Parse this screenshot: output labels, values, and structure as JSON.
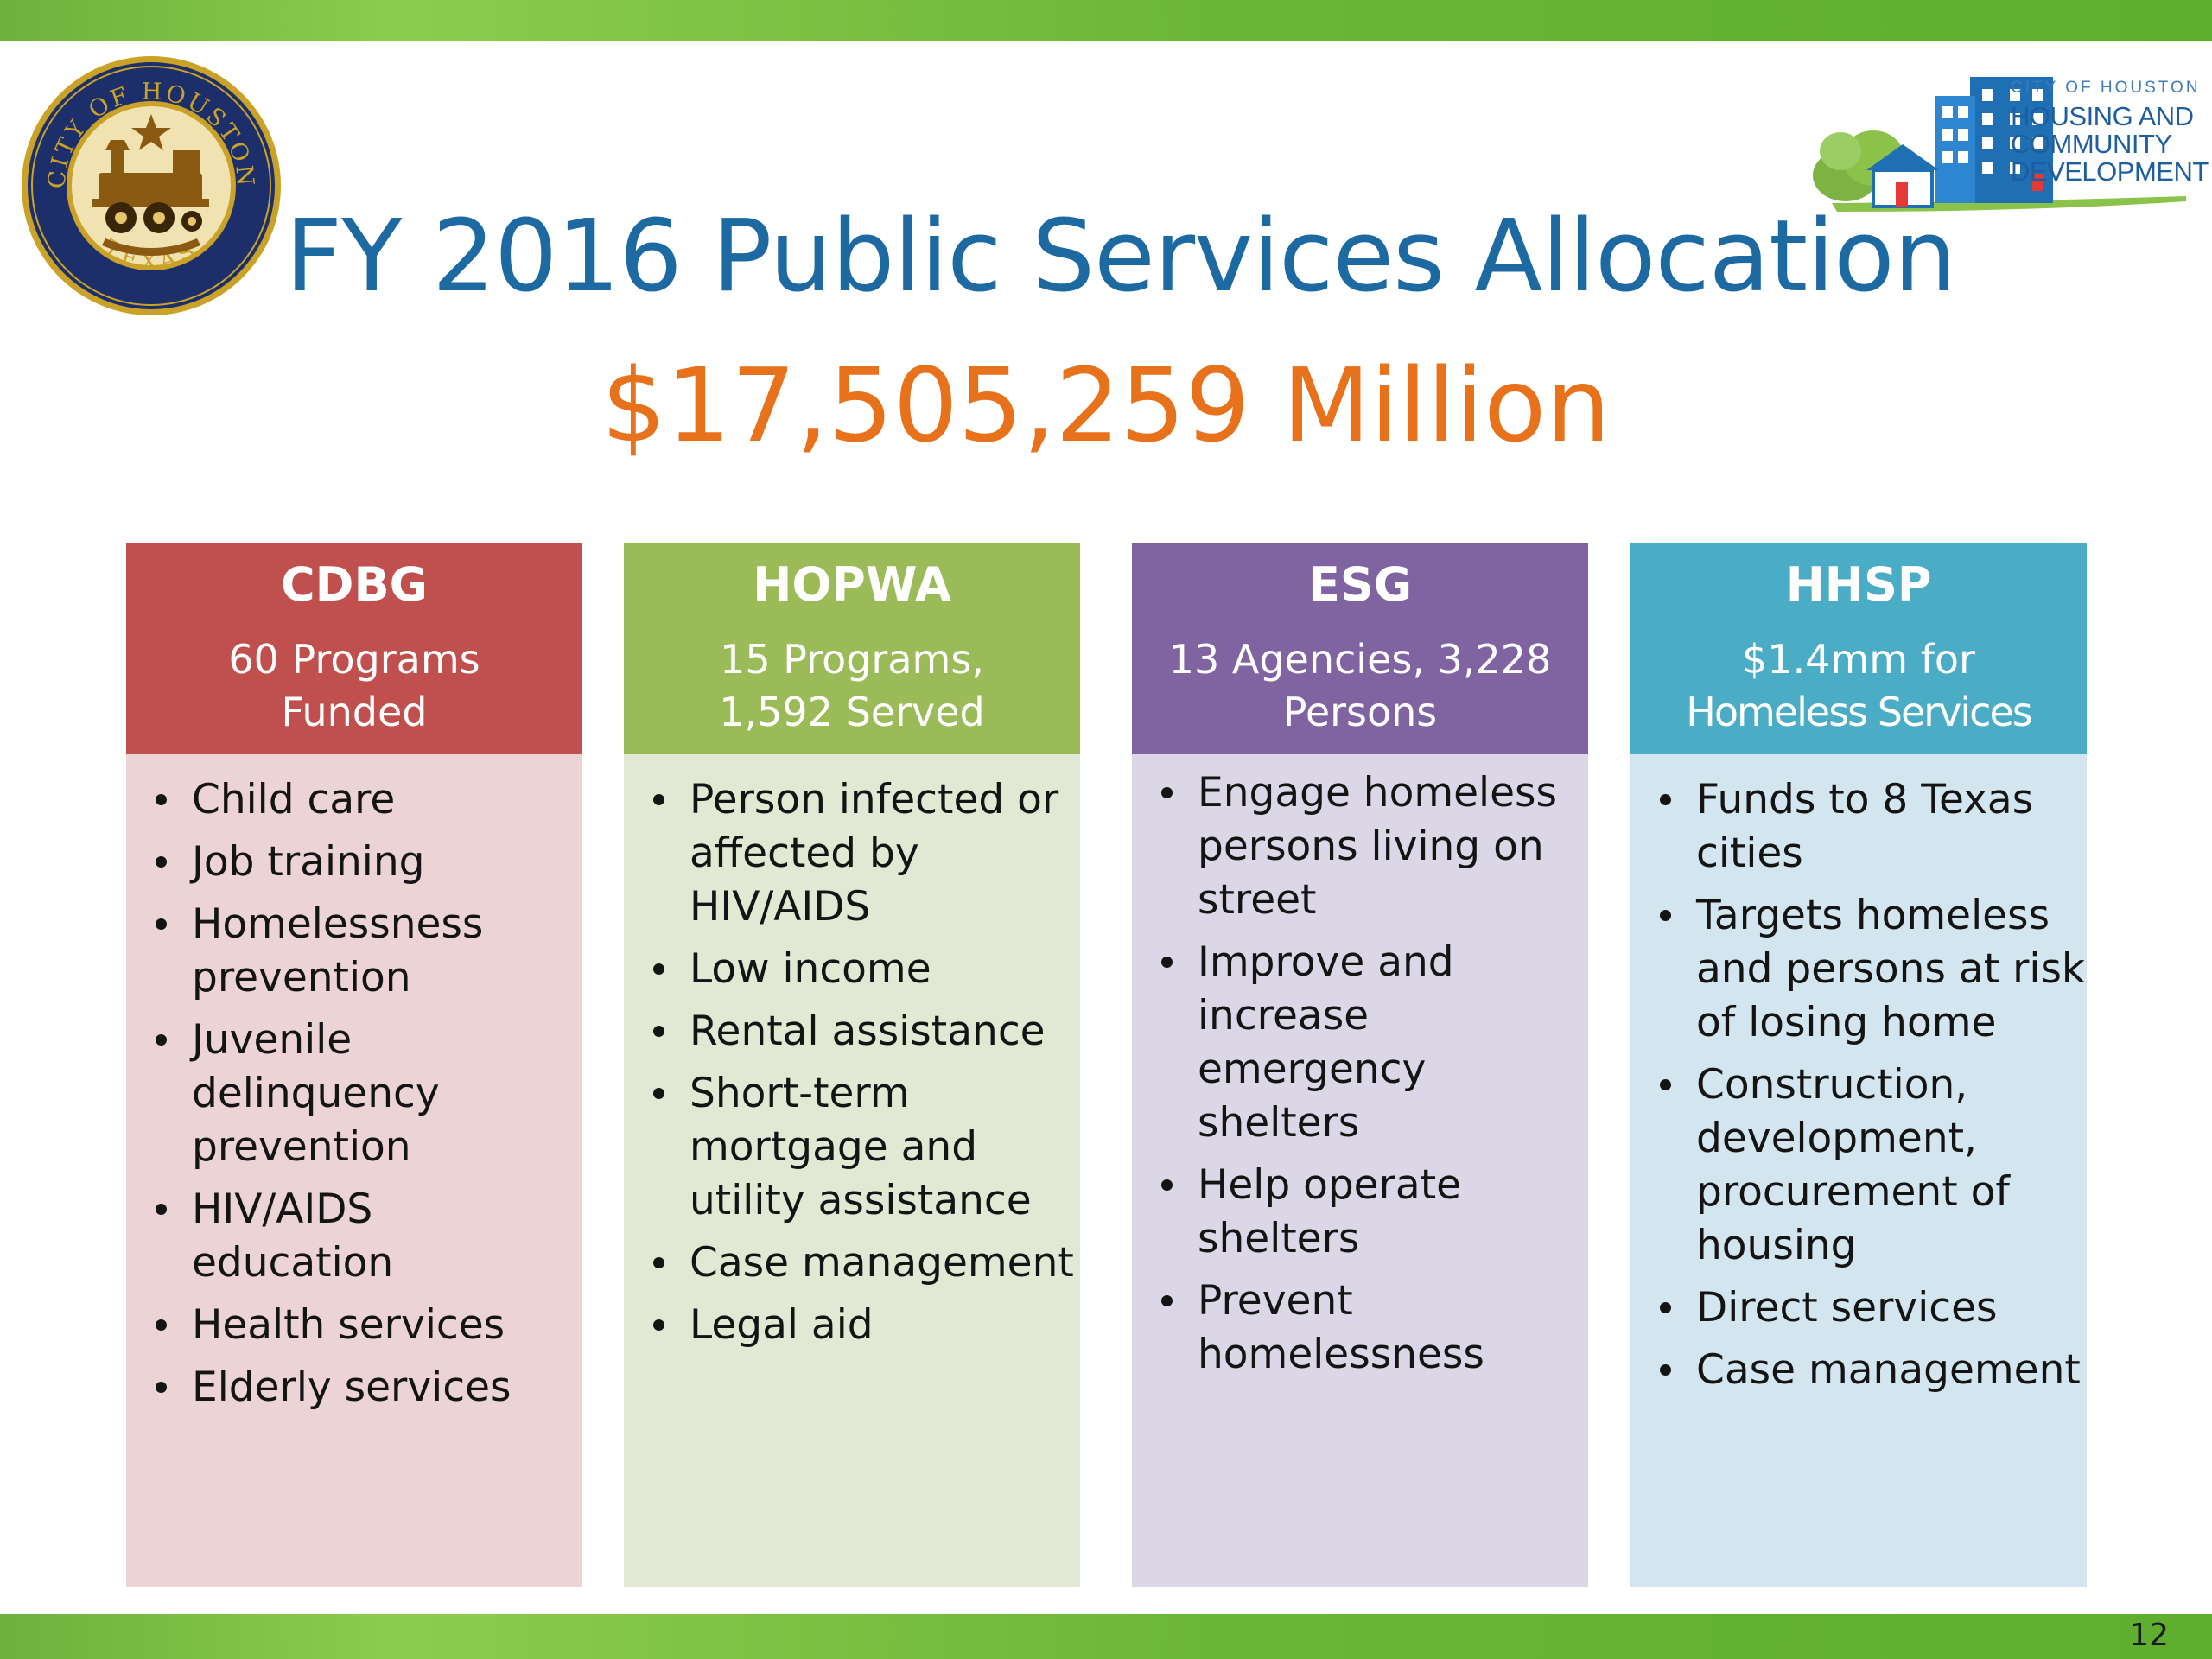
{
  "header": {
    "title": "FY 2016 Public Services Allocation",
    "subtitle": "$17,505,259 Million"
  },
  "logo": {
    "line1": "CITY OF HOUSTON",
    "line2": "HOUSING AND",
    "line3": "COMMUNITY",
    "line4": "DEVELOPMENT"
  },
  "seal": {
    "text_top": "CITY OF HOUSTON",
    "text_bottom": "TEXAS"
  },
  "colors": {
    "title": "#1d6aa2",
    "subtitle": "#e8711c",
    "cdbg_head": "#c0504d",
    "cdbg_body": "#ebd3d6",
    "hopwa_head": "#9bbb59",
    "hopwa_body": "#e1e9d5",
    "esg_head": "#8064a2",
    "esg_body": "#dcd7e6",
    "hhsp_head": "#4bacc6",
    "hhsp_body": "#d3e5ef"
  },
  "panels": [
    {
      "name": "CDBG",
      "sub_line1": "60 Programs",
      "sub_line2": "Funded",
      "items": [
        "Child care",
        "Job training",
        "Homelessness prevention",
        "Juvenile delinquency prevention",
        "HIV/AIDS education",
        "Health services",
        "Elderly services"
      ]
    },
    {
      "name": "HOPWA",
      "sub_line1": "15 Programs,",
      "sub_line2": "1,592 Served",
      "items": [
        "Person infected or affected by HIV/AIDS",
        "Low income",
        "Rental assistance",
        "Short-term mortgage and utility assistance",
        "Case management",
        "Legal aid"
      ]
    },
    {
      "name": "ESG",
      "sub_line1": "13 Agencies, 3,228",
      "sub_line2": "Persons",
      "items": [
        "Engage homeless persons living on street",
        "Improve and increase emergency shelters",
        "Help operate shelters",
        "Prevent homelessness"
      ]
    },
    {
      "name": "HHSP",
      "sub_line1": "$1.4mm for",
      "sub_line2": "Homeless Services",
      "items": [
        "Funds to 8 Texas cities",
        "Targets homeless and persons at risk of losing home",
        "Construction, development, procurement of housing",
        "Direct services",
        "Case management"
      ]
    }
  ],
  "footer": {
    "page_number": "12"
  }
}
